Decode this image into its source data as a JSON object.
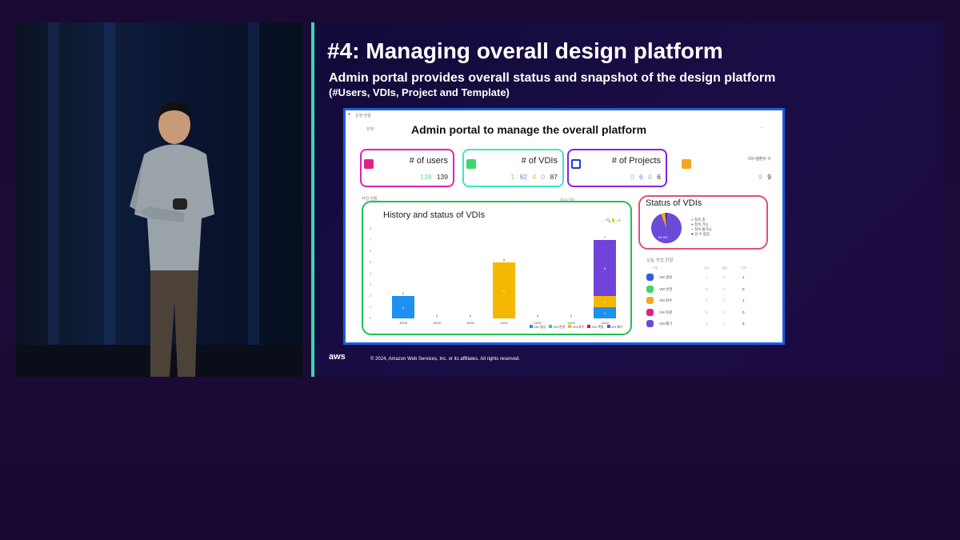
{
  "slide": {
    "title": "#4: Managing overall design platform",
    "subtitle": "Admin portal provides overall status and snapshot of the design platform",
    "subtitle2": "(#Users, VDIs, Project and Template)",
    "footer": "© 2024, Amazon Web Services, Inc. or its affiliates. All rights reserved.",
    "logo": "aws"
  },
  "portal": {
    "window_label": "운영 현황",
    "tab_label": "전체",
    "title": "Admin portal to manage the overall platform",
    "cards": [
      {
        "label": "# of users",
        "values": [
          "139",
          "139"
        ],
        "color": "#e020c0"
      },
      {
        "label": "# of VDIs",
        "values": [
          "1",
          "82",
          "4",
          "0",
          "87"
        ],
        "color": "#3ee6c4"
      },
      {
        "label": "# of Projects",
        "values": [
          "0",
          "6",
          "0",
          "6"
        ],
        "color": "#8a20e0"
      },
      {
        "label": "VDI 템플릿 수",
        "values": [
          "9",
          "9"
        ],
        "color": "#f5a623"
      }
    ],
    "section_label": "작업 현황",
    "period_label": "지난 7일",
    "history": {
      "title": "History and status of VDIs"
    },
    "status": {
      "title": "Status of VDIs",
      "pie_label": "94.3%",
      "legend": [
        "접속 중",
        "접속 가능",
        "접속 불가능",
        "알 수 없음"
      ]
    },
    "today": {
      "title": "오늘 작업 현황",
      "headers": [
        "작업",
        "성공",
        "실패",
        "전체"
      ],
      "rows": [
        {
          "label": "VM 생성",
          "success": "1",
          "fail": "0",
          "total": "1",
          "color": "#2f5fe0"
        },
        {
          "label": "VM 변경",
          "success": "0",
          "fail": "0",
          "total": "0",
          "color": "#3ed66a"
        },
        {
          "label": "VM 회수",
          "success": "1",
          "fail": "0",
          "total": "1",
          "color": "#f5a623"
        },
        {
          "label": "VM 복원",
          "success": "0",
          "fail": "0",
          "total": "0",
          "color": "#e0208a"
        },
        {
          "label": "VM 폐기",
          "success": "5",
          "fail": "0",
          "total": "5",
          "color": "#6b4ad8"
        }
      ]
    }
  },
  "chart_data": {
    "type": "bar",
    "stacked": true,
    "title": "History and status of VDIs",
    "categories": [
      "10/29",
      "10/30",
      "10/31",
      "11/01",
      "11/02",
      "11/03",
      "11/04"
    ],
    "ylim": [
      0,
      8
    ],
    "yticks": [
      "0",
      "1",
      "2",
      "3",
      "4",
      "5",
      "6",
      "7",
      "8"
    ],
    "series": [
      {
        "name": "VDI 생성",
        "color": "#1e90f0",
        "values": [
          2,
          0,
          0,
          0,
          0,
          0,
          1
        ]
      },
      {
        "name": "VDI 변경",
        "color": "#20d0a0",
        "values": [
          0,
          0,
          0,
          0,
          0,
          0,
          0
        ]
      },
      {
        "name": "VDI 회수",
        "color": "#f5b800",
        "values": [
          0,
          0,
          0,
          5,
          0,
          0,
          1
        ]
      },
      {
        "name": "VDI 복원",
        "color": "#e01040",
        "values": [
          0,
          0,
          0,
          0,
          0,
          0,
          0
        ]
      },
      {
        "name": "VDI 폐기",
        "color": "#7044d8",
        "values": [
          0,
          0,
          0,
          0,
          0,
          0,
          5
        ]
      }
    ],
    "totals": [
      "2",
      "0",
      "0",
      "5",
      "0",
      "0",
      "7"
    ],
    "legend_position": "bottom-right"
  },
  "pie": {
    "values": [
      0,
      94.3,
      4.6,
      1.1
    ],
    "colors": [
      "#3ed66a",
      "#6b4ad8",
      "#f5a623",
      "#111111"
    ]
  }
}
